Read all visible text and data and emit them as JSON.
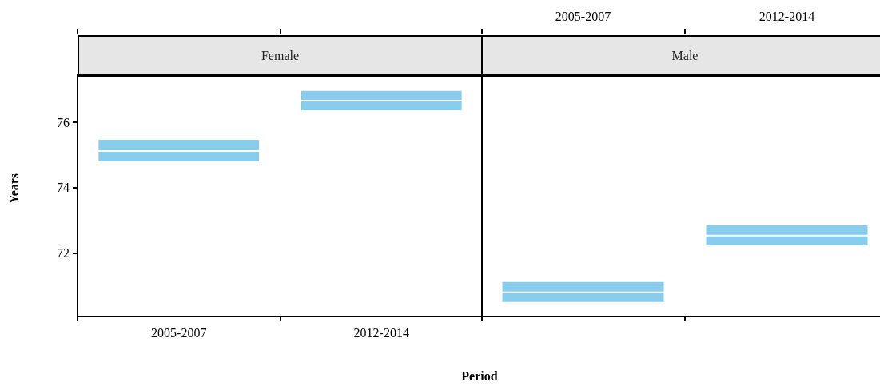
{
  "chart_data": [
    {
      "type": "box",
      "title": "Female",
      "xlabel": "Period",
      "ylabel": "Years",
      "categories": [
        "2005-2007",
        "2012-2014"
      ],
      "color": "#88cdee",
      "boxes": [
        {
          "low": 74.78,
          "q1": 74.78,
          "median": 75.12,
          "q3": 75.49,
          "high": 75.49
        },
        {
          "low": 76.34,
          "q1": 76.34,
          "median": 76.66,
          "q3": 76.98,
          "high": 76.98
        }
      ],
      "ylim": [
        70.07,
        77.44
      ],
      "yticks": [
        72,
        74,
        76
      ],
      "grid": false
    },
    {
      "type": "box",
      "title": "Male",
      "categories": [
        "2005-2007",
        "2012-2014"
      ],
      "color": "#88cdee",
      "boxes": [
        {
          "low": 70.49,
          "q1": 70.49,
          "median": 70.81,
          "q3": 71.15,
          "high": 71.15
        },
        {
          "low": 72.22,
          "q1": 72.22,
          "median": 72.54,
          "q3": 72.88,
          "high": 72.88
        }
      ],
      "ylim": [
        70.07,
        77.44
      ],
      "yticks": [
        72,
        74,
        76
      ],
      "grid": false,
      "tick_labels": "x"
    }
  ]
}
